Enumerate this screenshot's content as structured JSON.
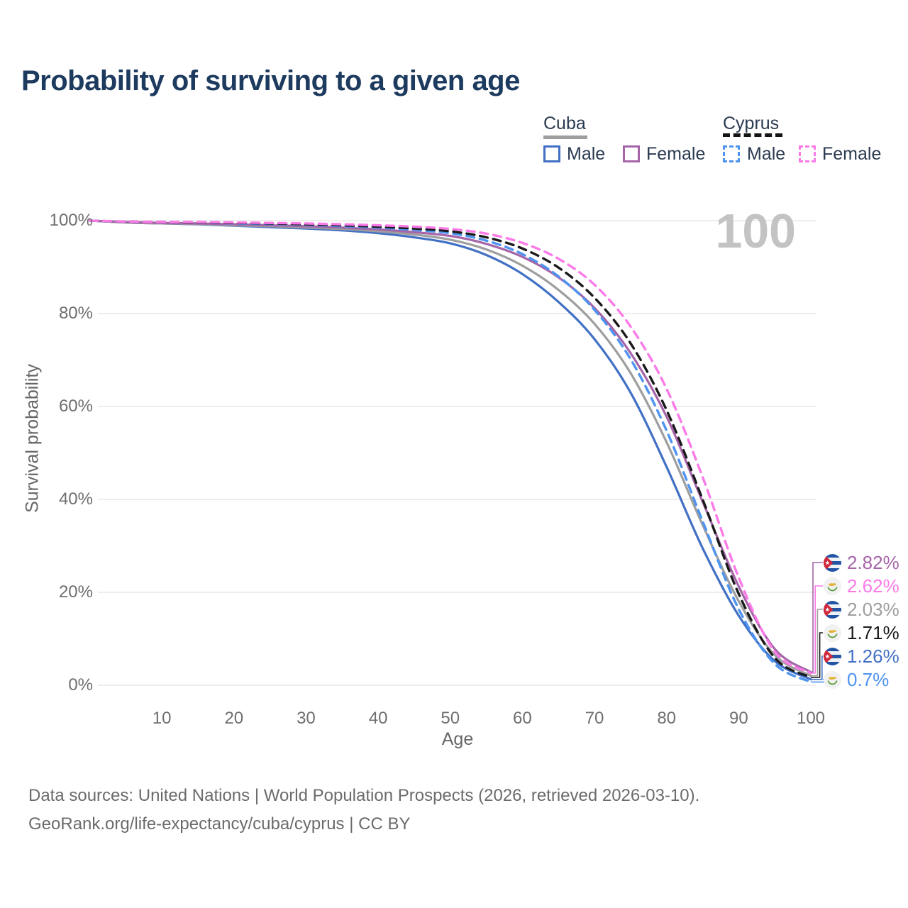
{
  "title": "Probability of surviving to a given age",
  "watermark": "100",
  "legend": {
    "cuba": {
      "title": "Cuba",
      "male_label": "Male",
      "female_label": "Female"
    },
    "cyprus": {
      "title": "Cyprus",
      "male_label": "Male",
      "female_label": "Female"
    }
  },
  "colors": {
    "cuba_male": "#4170c4",
    "cuba_female": "#a565a8",
    "cuba_both": "#9e9e9e",
    "cyprus_male": "#4d93f0",
    "cyprus_female": "#fb7ae8",
    "cyprus_both": "#1a1a1a",
    "grid": "#e7e7e7",
    "axis_text": "#6f6f6f",
    "title_text": "#1d3a5f",
    "watermark_text": "#c3c3c3",
    "flag_cuba_blue": "#2253a4",
    "flag_cuba_red": "#d0283a",
    "flag_cyprus_copper": "#e2b23a",
    "flag_cyprus_green": "#5a9e3a"
  },
  "chart_data": {
    "type": "line",
    "title": "Probability of surviving to a given age",
    "x_label": "Age",
    "y_label": "Survival probability",
    "x_ticks": [
      10,
      20,
      30,
      40,
      50,
      60,
      70,
      80,
      90,
      100
    ],
    "y_ticks": [
      {
        "label": "100%",
        "value": 100
      },
      {
        "label": "80%",
        "value": 80
      },
      {
        "label": "60%",
        "value": 60
      },
      {
        "label": "40%",
        "value": 40
      },
      {
        "label": "20%",
        "value": 20
      },
      {
        "label": "0%",
        "value": 0
      }
    ],
    "x_range": [
      0,
      100
    ],
    "y_range": [
      0,
      100
    ],
    "grid": "horizontal-only",
    "legend_position": "top-right",
    "x": [
      0,
      5,
      10,
      15,
      20,
      25,
      30,
      35,
      40,
      45,
      50,
      55,
      60,
      65,
      70,
      75,
      80,
      85,
      90,
      95,
      100
    ],
    "series": [
      {
        "name": "Cuba Male",
        "country": "Cuba",
        "sex": "Male",
        "style": "solid",
        "color_key": "cuba_male",
        "end_label": "1.26%",
        "values": [
          100,
          99.6,
          99.4,
          99.2,
          98.9,
          98.6,
          98.3,
          97.9,
          97.3,
          96.4,
          95.1,
          92.6,
          88.5,
          82.5,
          74.5,
          63.0,
          47.0,
          29.5,
          15.0,
          5.2,
          1.26
        ]
      },
      {
        "name": "Cuba Both sexes",
        "country": "Cuba",
        "sex": "Both",
        "style": "solid",
        "color_key": "cuba_both",
        "end_label": "2.03%",
        "values": [
          100,
          99.6,
          99.4,
          99.3,
          99.0,
          98.8,
          98.5,
          98.2,
          97.7,
          97.0,
          95.9,
          93.8,
          90.3,
          85.1,
          77.8,
          67.2,
          52.3,
          34.5,
          18.1,
          6.5,
          2.03
        ]
      },
      {
        "name": "Cuba Female",
        "country": "Cuba",
        "sex": "Female",
        "style": "solid",
        "color_key": "cuba_female",
        "end_label": "2.82%",
        "values": [
          100,
          99.7,
          99.5,
          99.4,
          99.2,
          99.0,
          98.8,
          98.5,
          98.1,
          97.5,
          96.7,
          95.0,
          92.2,
          87.8,
          81.2,
          71.5,
          57.8,
          39.5,
          21.3,
          7.8,
          2.82
        ]
      },
      {
        "name": "Cyprus Male",
        "country": "Cyprus",
        "sex": "Male",
        "style": "dashed",
        "color_key": "cyprus_male",
        "end_label": "0.7%",
        "values": [
          100,
          99.8,
          99.7,
          99.6,
          99.4,
          99.3,
          99.1,
          98.8,
          98.5,
          98.0,
          97.3,
          95.7,
          92.8,
          88.0,
          80.8,
          70.2,
          54.8,
          35.3,
          16.4,
          4.6,
          0.7
        ]
      },
      {
        "name": "Cyprus Both sexes",
        "country": "Cyprus",
        "sex": "Both",
        "style": "dashed",
        "color_key": "cyprus_both",
        "end_label": "1.71%",
        "values": [
          100,
          99.8,
          99.7,
          99.6,
          99.5,
          99.4,
          99.2,
          99.0,
          98.7,
          98.3,
          97.7,
          96.4,
          94.0,
          89.9,
          83.4,
          73.6,
          59.2,
          40.0,
          19.7,
          5.9,
          1.71
        ]
      },
      {
        "name": "Cyprus Female",
        "country": "Cyprus",
        "sex": "Female",
        "style": "dashed",
        "color_key": "cyprus_female",
        "end_label": "2.62%",
        "values": [
          100,
          99.8,
          99.7,
          99.7,
          99.6,
          99.5,
          99.4,
          99.2,
          99.0,
          98.7,
          98.2,
          97.2,
          95.2,
          91.8,
          86.2,
          77.2,
          63.8,
          44.8,
          23.2,
          7.2,
          2.62
        ]
      }
    ]
  },
  "end_labels": [
    {
      "flag": "cuba",
      "text": "2.82%",
      "color_key": "cuba_female",
      "series": "Cuba Female"
    },
    {
      "flag": "cyprus",
      "text": "2.62%",
      "color_key": "cyprus_female",
      "series": "Cyprus Female"
    },
    {
      "flag": "cuba",
      "text": "2.03%",
      "color_key": "cuba_both",
      "series": "Cuba Both sexes"
    },
    {
      "flag": "cyprus",
      "text": "1.71%",
      "color_key": "cyprus_both",
      "series": "Cyprus Both sexes"
    },
    {
      "flag": "cuba",
      "text": "1.26%",
      "color_key": "cuba_male",
      "series": "Cuba Male"
    },
    {
      "flag": "cyprus",
      "text": "0.7%",
      "color_key": "cyprus_male",
      "series": "Cyprus Male"
    }
  ],
  "footer": {
    "line1": "Data sources: United Nations | World Population Prospects (2026, retrieved 2026-03-10).",
    "line2": "GeoRank.org/life-expectancy/cuba/cyprus | CC BY"
  }
}
